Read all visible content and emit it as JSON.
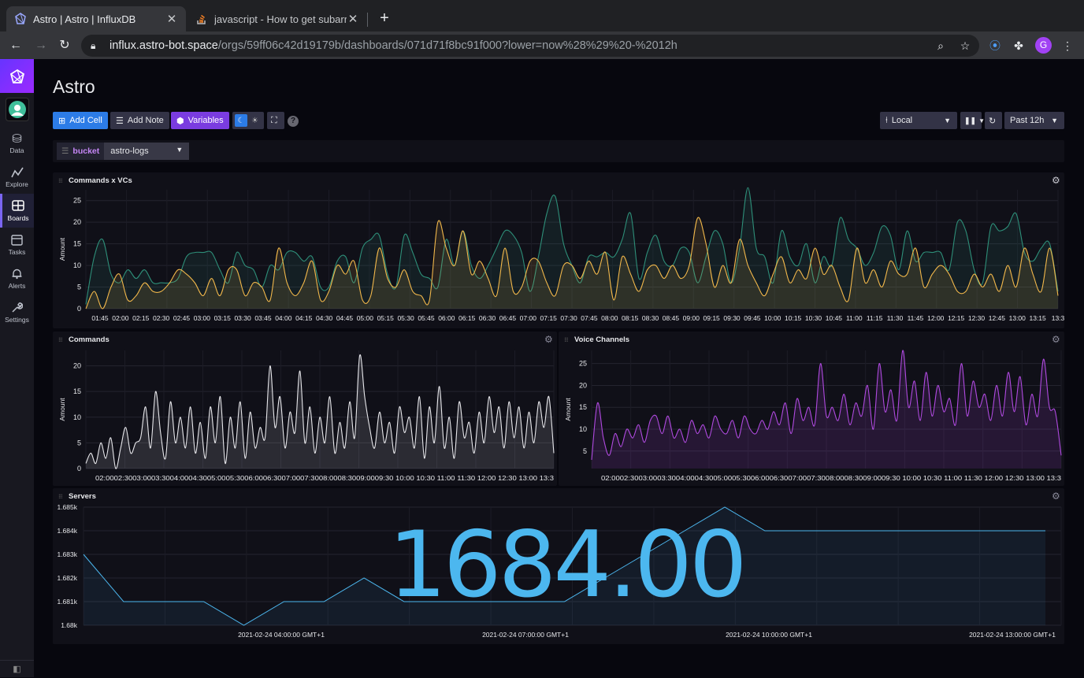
{
  "browser": {
    "tabs": [
      {
        "title": "Astro | Astro | InfluxDB",
        "active": true,
        "icon": "influxdb-icon"
      },
      {
        "title": "javascript - How to get subarra",
        "active": false,
        "icon": "stackoverflow-icon"
      }
    ],
    "url_host": "influx.astro-bot.space",
    "url_path": "/orgs/59ff06c42d19179b/dashboards/071d71f8bc91f000?lower=now%28%29%20-%2012h",
    "profile_initial": "G"
  },
  "sidebar": {
    "items": [
      {
        "label": "Data",
        "icon": "database-icon"
      },
      {
        "label": "Explore",
        "icon": "graph-line-icon"
      },
      {
        "label": "Boards",
        "icon": "dashboard-icon",
        "active": true
      },
      {
        "label": "Tasks",
        "icon": "calendar-icon"
      },
      {
        "label": "Alerts",
        "icon": "bell-icon"
      },
      {
        "label": "Settings",
        "icon": "wrench-icon"
      }
    ]
  },
  "dashboard": {
    "title": "Astro",
    "toolbar": {
      "add_cell": "Add Cell",
      "add_note": "Add Note",
      "variables": "Variables",
      "timezone": "Local",
      "time_range": "Past 12h"
    },
    "variables": [
      {
        "key": "bucket",
        "value": "astro-logs"
      }
    ]
  },
  "colors": {
    "green_series": "#2e8f79",
    "yellow_series": "#f2b84b",
    "white_series": "#e8e8ec",
    "purple_series": "#b04ae0",
    "blue_series": "#4cb7ef",
    "accent": "#7a65f2"
  },
  "cells": {
    "commands_vcs": {
      "title": "Commands x VCs",
      "ylabel": "Amount",
      "yticks": [
        "0",
        "5",
        "10",
        "15",
        "20",
        "25"
      ],
      "xticks": [
        "01:45",
        "02:00",
        "02:15",
        "02:30",
        "02:45",
        "03:00",
        "03:15",
        "03:30",
        "03:45",
        "04:00",
        "04:15",
        "04:30",
        "04:45",
        "05:00",
        "05:15",
        "05:30",
        "05:45",
        "06:00",
        "06:15",
        "06:30",
        "06:45",
        "07:00",
        "07:15",
        "07:30",
        "07:45",
        "08:00",
        "08:15",
        "08:30",
        "08:45",
        "09:00",
        "09:15",
        "09:30",
        "09:45",
        "10:00",
        "10:15",
        "10:30",
        "10:45",
        "11:00",
        "11:15",
        "11:30",
        "11:45",
        "12:00",
        "12:15",
        "12:30",
        "12:45",
        "13:00",
        "13:15",
        "13:3"
      ]
    },
    "commands": {
      "title": "Commands",
      "ylabel": "Amount",
      "yticks": [
        "0",
        "5",
        "10",
        "15",
        "20"
      ],
      "xticks_text": "02:0002:3003:0003:3004:0004:3005:0005:3006:0006:3007:0007:3008:0008:3009:0009:30 10:00 10:30 11:00 11:30 12:00 12:30 13:00 13:3"
    },
    "voice_channels": {
      "title": "Voice Channels",
      "ylabel": "Amount",
      "yticks": [
        "5",
        "10",
        "15",
        "20",
        "25"
      ],
      "xticks_text": "02:0002:3003:0003:3004:0004:3005:0005:3006:0006:3007:0007:3008:0008:3009:0009:30 10:00 10:30 11:00 11:30 12:00 12:30 13:00 13:3"
    },
    "servers": {
      "title": "Servers",
      "big_value": "1684.00",
      "yticks": [
        "1.68k",
        "1.681k",
        "1.682k",
        "1.683k",
        "1.684k",
        "1.685k"
      ],
      "xticks": [
        "2021-02-24 04:00:00 GMT+1",
        "2021-02-24 07:00:00 GMT+1",
        "2021-02-24 10:00:00 GMT+1",
        "2021-02-24 13:00:00 GMT+1"
      ]
    }
  },
  "chart_data": [
    {
      "type": "line",
      "title": "Commands x VCs",
      "ylabel": "Amount",
      "ylim": [
        0,
        27
      ],
      "series": [
        {
          "values": [
            1,
            12,
            16,
            8,
            6,
            9,
            7,
            9,
            6,
            6,
            6,
            7,
            12,
            13,
            13,
            13,
            9,
            6,
            13,
            10,
            9,
            5,
            10,
            9,
            13,
            13,
            11,
            12,
            5,
            5,
            11,
            12,
            6,
            14,
            16,
            17,
            8,
            5,
            17,
            13,
            8,
            7,
            5,
            16,
            10,
            18,
            10,
            7,
            10,
            14,
            18,
            17,
            13,
            4,
            12,
            22,
            26,
            15,
            10,
            6,
            12,
            12,
            13,
            12,
            16,
            22,
            7,
            13,
            17,
            11,
            10,
            14,
            13,
            6,
            12,
            18,
            15,
            6,
            14,
            28,
            14,
            12,
            6,
            18,
            12,
            10,
            15,
            6,
            12,
            10,
            21,
            16,
            14,
            10,
            13,
            19,
            17,
            9,
            18,
            11,
            13,
            13,
            13,
            9,
            20,
            18,
            9,
            6,
            19,
            18,
            19,
            22,
            13,
            11,
            14,
            15,
            4
          ]
        },
        {
          "values": [
            0,
            4,
            0,
            5,
            8,
            2,
            3,
            6,
            4,
            4,
            6,
            9,
            8,
            6,
            3,
            7,
            3,
            9,
            9,
            3,
            6,
            5,
            2,
            14,
            6,
            3,
            6,
            11,
            2,
            4,
            10,
            8,
            11,
            2,
            3,
            14,
            7,
            5,
            9,
            4,
            3,
            2,
            20,
            14,
            10,
            18,
            8,
            11,
            7,
            3,
            14,
            4,
            5,
            11,
            11,
            6,
            3,
            10,
            10,
            7,
            11,
            8,
            13,
            2,
            12,
            8,
            4,
            9,
            10,
            7,
            10,
            7,
            10,
            21,
            15,
            5,
            10,
            6,
            16,
            10,
            6,
            3,
            8,
            12,
            6,
            9,
            7,
            14,
            8,
            10,
            5,
            2,
            14,
            6,
            9,
            5,
            11,
            8,
            8,
            14,
            5,
            8,
            10,
            8,
            4,
            4,
            8,
            5,
            8,
            4,
            10,
            5,
            14,
            8,
            4,
            14,
            3
          ]
        }
      ]
    },
    {
      "type": "line",
      "title": "Commands",
      "ylabel": "Amount",
      "ylim": [
        0,
        23
      ],
      "series": [
        {
          "values": [
            1,
            3,
            1,
            5,
            2,
            6,
            0,
            4,
            8,
            3,
            5,
            6,
            12,
            4,
            15,
            7,
            2,
            13,
            5,
            10,
            4,
            12,
            3,
            9,
            2,
            12,
            5,
            14,
            1,
            10,
            4,
            13,
            2,
            11,
            4,
            8,
            6,
            20,
            8,
            14,
            4,
            11,
            7,
            19,
            5,
            12,
            3,
            10,
            5,
            14,
            3,
            9,
            4,
            13,
            6,
            22,
            14,
            8,
            4,
            11,
            5,
            9,
            3,
            12,
            7,
            10,
            4,
            14,
            2,
            12,
            5,
            16,
            4,
            10,
            2,
            13,
            6,
            9,
            3,
            11,
            5,
            14,
            7,
            12,
            4,
            13,
            6,
            12,
            4,
            11,
            5,
            13,
            8,
            14,
            3
          ]
        }
      ]
    },
    {
      "type": "line",
      "title": "Voice Channels",
      "ylabel": "Amount",
      "ylim": [
        2,
        28
      ],
      "series": [
        {
          "values": [
            3,
            16,
            8,
            4,
            9,
            6,
            10,
            8,
            11,
            7,
            12,
            13,
            9,
            13,
            8,
            10,
            7,
            12,
            9,
            11,
            8,
            13,
            10,
            9,
            12,
            8,
            13,
            10,
            9,
            12,
            10,
            14,
            11,
            16,
            9,
            17,
            12,
            15,
            11,
            25,
            13,
            15,
            12,
            18,
            11,
            16,
            13,
            20,
            10,
            25,
            14,
            19,
            12,
            28,
            15,
            21,
            12,
            23,
            13,
            20,
            14,
            17,
            11,
            25,
            13,
            21,
            15,
            18,
            12,
            20,
            13,
            23,
            14,
            22,
            11,
            18,
            13,
            26,
            15,
            14,
            4
          ]
        }
      ]
    },
    {
      "type": "line",
      "title": "Servers",
      "ylim": [
        1680,
        1685
      ],
      "x": [
        "01:30",
        "02:00",
        "02:30",
        "03:00",
        "03:30",
        "04:00",
        "04:30",
        "05:00",
        "05:30",
        "06:00",
        "06:30",
        "07:00",
        "07:30",
        "08:00",
        "08:30",
        "09:00",
        "09:30",
        "10:00",
        "10:30",
        "11:00",
        "11:30",
        "12:00",
        "12:30",
        "13:00",
        "13:30"
      ],
      "series": [
        {
          "values": [
            1683,
            1681,
            1681,
            1681,
            1680,
            1681,
            1681,
            1682,
            1681,
            1681,
            1681,
            1681,
            1681,
            1682,
            1683,
            1684,
            1685,
            1684,
            1684,
            1684,
            1684,
            1684,
            1684,
            1684,
            1684
          ]
        }
      ]
    }
  ]
}
